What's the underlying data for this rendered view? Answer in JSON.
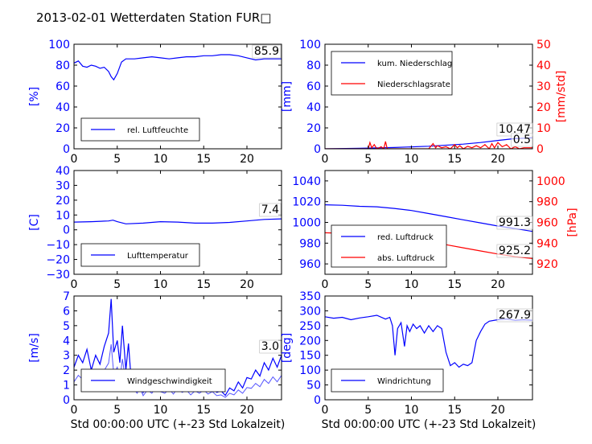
{
  "title": "2013-02-01 Wetterdaten Station FUR□",
  "colors": {
    "left": "#0000ff",
    "right": "#ff0000",
    "wind_left": "#5555ff"
  },
  "chart_data": [
    {
      "type": "line",
      "xlim": [
        0,
        24
      ],
      "ylim": [
        0,
        100
      ],
      "xticks": [
        "0",
        "5",
        "10",
        "15",
        "20"
      ],
      "yticks": [
        "0",
        "20",
        "40",
        "60",
        "80",
        "100"
      ],
      "ylabel": "[%]",
      "annotation": "85.9",
      "series": [
        {
          "name": "rel. Luftfeuchte",
          "axis": "left",
          "x": [
            0,
            0.5,
            1,
            1.5,
            2,
            2.5,
            3,
            3.5,
            4,
            4.3,
            4.6,
            5,
            5.5,
            6,
            7,
            8,
            9,
            10,
            11,
            12,
            13,
            14,
            15,
            16,
            17,
            18,
            19,
            20,
            21,
            22,
            23,
            24
          ],
          "y": [
            82,
            84,
            79,
            78,
            80,
            79,
            77,
            78,
            74,
            69,
            66,
            72,
            83,
            86,
            86,
            87,
            88,
            87,
            86,
            87,
            88,
            88,
            89,
            89,
            90,
            90,
            89,
            87,
            85,
            86,
            86,
            86
          ]
        }
      ]
    },
    {
      "type": "line",
      "xlim": [
        0,
        24
      ],
      "ylim": [
        0,
        100
      ],
      "ylim_right": [
        0,
        50
      ],
      "xticks": [
        "0",
        "5",
        "10",
        "15",
        "20"
      ],
      "yticks": [
        "0",
        "20",
        "40",
        "60",
        "80",
        "100"
      ],
      "yticks_right": [
        "0",
        "10",
        "20",
        "30",
        "40",
        "50"
      ],
      "ylabel": "[mm]",
      "ylabel_right": "[mm/std]",
      "annotations": [
        "10.47",
        "0.5"
      ],
      "series": [
        {
          "name": "kum. Niederschlag",
          "axis": "left",
          "x": [
            0,
            4,
            8,
            12,
            16,
            18,
            20,
            22,
            24
          ],
          "y": [
            0,
            0.5,
            1.2,
            2.5,
            4.5,
            6,
            8,
            9.8,
            10.5
          ]
        },
        {
          "name": "Niederschlagsrate",
          "axis": "right",
          "x": [
            0,
            5,
            5.2,
            5.4,
            5.7,
            6,
            6.5,
            6.8,
            7,
            7.2,
            8,
            10,
            12,
            12.5,
            12.8,
            13,
            13.5,
            14,
            14.5,
            15,
            15.3,
            15.6,
            16,
            16.5,
            17,
            17.5,
            18,
            18.5,
            19,
            19.3,
            19.6,
            20,
            20.5,
            21,
            21.5,
            22,
            22.5,
            23,
            24
          ],
          "y": [
            0,
            0,
            3,
            0.5,
            2,
            0,
            1,
            0,
            3.5,
            0,
            0,
            0,
            0,
            2.5,
            0.5,
            1.5,
            0.5,
            1,
            0,
            2,
            0.5,
            1.5,
            0,
            1.2,
            0.5,
            1.5,
            0.5,
            2,
            0,
            2.5,
            0.5,
            3,
            1,
            2,
            0,
            1,
            0,
            0.5,
            0.5
          ]
        }
      ]
    },
    {
      "type": "line",
      "xlim": [
        0,
        24
      ],
      "ylim": [
        -30,
        40
      ],
      "xticks": [
        "0",
        "5",
        "10",
        "15",
        "20"
      ],
      "yticks": [
        "−30",
        "−20",
        "−10",
        "0",
        "10",
        "20",
        "30",
        "40"
      ],
      "ylabel": "[C]",
      "annotation": "7.4",
      "series": [
        {
          "name": "Lufttemperatur",
          "axis": "left",
          "x": [
            0,
            2,
            4,
            4.5,
            5,
            6,
            8,
            10,
            12,
            14,
            16,
            18,
            20,
            22,
            24
          ],
          "y": [
            5.2,
            5.5,
            6,
            6.5,
            5.5,
            4,
            4.5,
            5.5,
            5.2,
            4.5,
            4.5,
            5,
            6,
            7,
            7.4
          ]
        }
      ]
    },
    {
      "type": "line",
      "xlim": [
        0,
        24
      ],
      "ylim": [
        950,
        1050
      ],
      "ylim_right": [
        910,
        1010
      ],
      "xticks": [
        "0",
        "5",
        "10",
        "15",
        "20"
      ],
      "yticks": [
        "960",
        "980",
        "1000",
        "1020",
        "1040"
      ],
      "yticks_right": [
        "920",
        "940",
        "960",
        "980",
        "1000"
      ],
      "ylabel_right": "[hPa]",
      "annotations": [
        "991.3",
        "925.2"
      ],
      "series": [
        {
          "name": "red. Luftdruck",
          "axis": "left",
          "x": [
            0,
            2,
            4,
            6,
            8,
            10,
            12,
            14,
            16,
            18,
            20,
            22,
            24
          ],
          "y": [
            1017,
            1016.5,
            1015.5,
            1015,
            1013.5,
            1011.5,
            1008.5,
            1005.5,
            1002.5,
            999.5,
            996.5,
            994,
            991.3
          ]
        },
        {
          "name": "abs. Luftdruck",
          "axis": "right",
          "x": [
            0,
            2,
            4,
            6,
            8,
            10,
            12,
            14,
            16,
            18,
            20,
            22,
            24
          ],
          "y": [
            950,
            949.5,
            948.5,
            948,
            946.5,
            944.5,
            941.5,
            938.5,
            935.5,
            932.5,
            929.5,
            927,
            925.2
          ]
        }
      ]
    },
    {
      "type": "line",
      "xlim": [
        0,
        24
      ],
      "ylim": [
        0,
        7
      ],
      "xticks": [
        "0",
        "5",
        "10",
        "15",
        "20"
      ],
      "yticks": [
        "0",
        "1",
        "2",
        "3",
        "4",
        "5",
        "6",
        "7"
      ],
      "ylabel": "[m/s]",
      "xlabel": "Std 00:00:00 UTC (+-23 Std Lokalzeit)",
      "annotation": "3.0",
      "series": [
        {
          "name": "Windgeschwindigkeit",
          "axis": "left",
          "x": [
            0,
            0.5,
            1,
            1.5,
            2,
            2.5,
            3,
            3.5,
            4,
            4.3,
            4.6,
            5,
            5.3,
            5.6,
            6,
            6.3,
            6.6,
            7,
            7.3,
            7.6,
            8,
            8.5,
            9,
            9.5,
            10,
            10.5,
            11,
            11.5,
            12,
            12.5,
            13,
            13.5,
            14,
            14.5,
            15,
            15.5,
            16,
            16.5,
            17,
            17.5,
            18,
            18.5,
            19,
            19.5,
            20,
            20.5,
            21,
            21.5,
            22,
            22.5,
            23,
            23.5,
            24
          ],
          "y": [
            2.2,
            3.0,
            2.5,
            3.4,
            2.0,
            3.0,
            2.4,
            3.6,
            4.5,
            6.8,
            3.2,
            4.0,
            2.5,
            5.0,
            2.0,
            3.8,
            1.5,
            1.2,
            0.8,
            1.5,
            0.5,
            1.2,
            0.8,
            1.6,
            1.0,
            0.8,
            1.3,
            0.7,
            1.5,
            0.9,
            1.2,
            0.6,
            1.1,
            0.8,
            1.2,
            0.7,
            1.0,
            0.5,
            0.6,
            0.3,
            0.8,
            0.6,
            1.2,
            0.8,
            1.5,
            1.4,
            2.0,
            1.6,
            2.5,
            2.0,
            2.8,
            2.2,
            3.0
          ]
        }
      ]
    },
    {
      "type": "line",
      "xlim": [
        0,
        24
      ],
      "ylim": [
        0,
        350
      ],
      "xticks": [
        "0",
        "5",
        "10",
        "15",
        "20"
      ],
      "yticks": [
        "0",
        "50",
        "100",
        "150",
        "200",
        "250",
        "300",
        "350"
      ],
      "ylabel": "[deg]",
      "xlabel": "Std 00:00:00 UTC (+-23 Std Lokalzeit)",
      "annotation": "267.9",
      "series": [
        {
          "name": "Windrichtung",
          "axis": "left",
          "x": [
            0,
            1,
            2,
            3,
            4,
            5,
            6,
            7,
            7.5,
            7.8,
            8.1,
            8.4,
            8.8,
            9.2,
            9.5,
            9.8,
            10.2,
            10.6,
            11,
            11.5,
            12,
            12.5,
            13,
            13.5,
            14,
            14.5,
            15,
            15.5,
            16,
            16.5,
            17,
            17.5,
            18,
            18.5,
            19,
            20,
            21,
            22,
            23,
            24
          ],
          "y": [
            280,
            275,
            278,
            270,
            276,
            280,
            285,
            272,
            278,
            250,
            150,
            240,
            260,
            180,
            250,
            230,
            255,
            240,
            250,
            225,
            250,
            230,
            250,
            240,
            160,
            115,
            125,
            110,
            120,
            115,
            125,
            200,
            230,
            255,
            265,
            270,
            272,
            268,
            270,
            268
          ]
        }
      ]
    }
  ]
}
